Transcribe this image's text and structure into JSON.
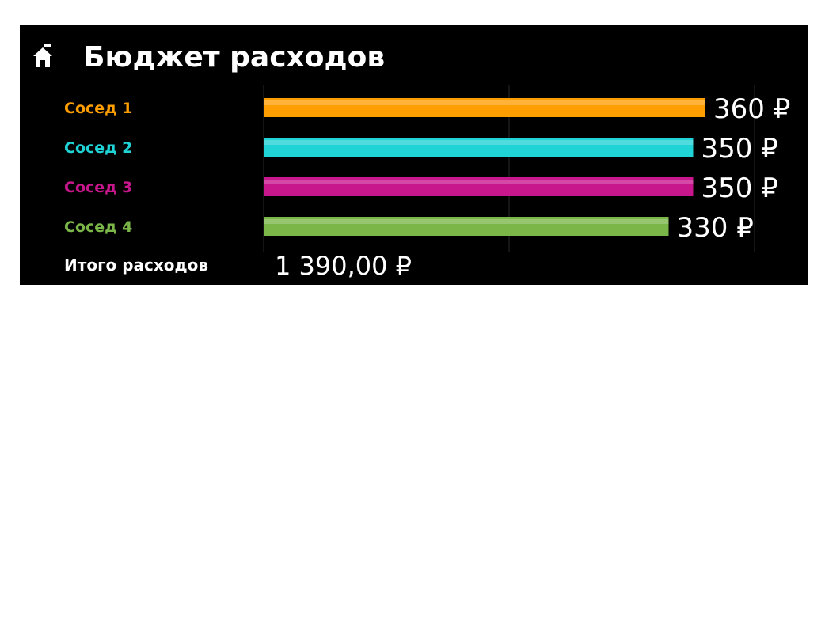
{
  "header": {
    "title": "Бюджет расходов",
    "icon": "house-icon"
  },
  "chart_data": {
    "type": "bar",
    "orientation": "horizontal",
    "categories": [
      "Сосед 1",
      "Сосед 2",
      "Сосед 3",
      "Сосед 4"
    ],
    "values": [
      360,
      350,
      350,
      330
    ],
    "value_labels": [
      "360 ₽",
      "350 ₽",
      "350 ₽",
      "330 ₽"
    ],
    "colors": [
      "#ff9e00",
      "#1fd3d6",
      "#c8168c",
      "#7ab648"
    ],
    "xlim": [
      0,
      400
    ],
    "grid": true
  },
  "summary": {
    "total_label": "Итого расходов",
    "total_value": "1 390,00 ₽"
  }
}
